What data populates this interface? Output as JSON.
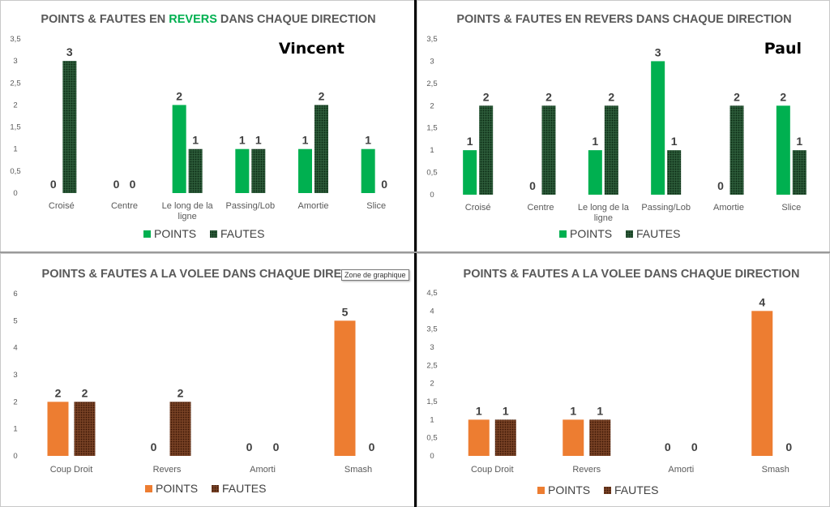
{
  "colors": {
    "green_points": "#00b050",
    "green_fautes": "#1f4e2c",
    "orange_points": "#ed7d31",
    "brown_fautes": "#6b3418",
    "revers_highlight": "#00b050"
  },
  "tooltip": "Zone de graphique",
  "chart_data": [
    {
      "type": "bar",
      "title_parts": [
        "POINTS & FAUTES EN ",
        "REVERS",
        " DANS CHAQUE DIRECTION"
      ],
      "title": "POINTS & FAUTES EN REVERS DANS CHAQUE DIRECTION",
      "player": "Vincent",
      "categories": [
        [
          "Croisé"
        ],
        [
          "Centre"
        ],
        [
          "Le long de la",
          "ligne"
        ],
        [
          "Passing/Lob"
        ],
        [
          "Amortie"
        ],
        [
          "Slice"
        ]
      ],
      "series": [
        {
          "name": "POINTS",
          "values": [
            0,
            0,
            2,
            1,
            1,
            1
          ],
          "color": "#00b050"
        },
        {
          "name": "FAUTES",
          "values": [
            3,
            0,
            1,
            1,
            2,
            0
          ],
          "color": "#1f4e2c",
          "pattern": true
        }
      ],
      "ylim": [
        0,
        3.5
      ],
      "yticks": [
        "0",
        "0,5",
        "1",
        "1,5",
        "2",
        "2,5",
        "3",
        "3,5"
      ],
      "legend": "bottom"
    },
    {
      "type": "bar",
      "title_parts": [
        "POINTS & FAUTES EN REVERS DANS CHAQUE DIRECTION"
      ],
      "title": "POINTS & FAUTES EN REVERS DANS CHAQUE DIRECTION",
      "player": "Paul",
      "categories": [
        [
          "Croisé"
        ],
        [
          "Centre"
        ],
        [
          "Le long de la",
          "ligne"
        ],
        [
          "Passing/Lob"
        ],
        [
          "Amortie"
        ],
        [
          "Slice"
        ]
      ],
      "series": [
        {
          "name": "POINTS",
          "values": [
            1,
            0,
            1,
            3,
            0,
            2
          ],
          "color": "#00b050"
        },
        {
          "name": "FAUTES",
          "values": [
            2,
            2,
            2,
            1,
            2,
            1
          ],
          "color": "#1f4e2c",
          "pattern": true
        }
      ],
      "ylim": [
        0,
        3.5
      ],
      "yticks": [
        "0",
        "0,5",
        "1",
        "1,5",
        "2",
        "2,5",
        "3",
        "3,5"
      ],
      "legend": "bottom"
    },
    {
      "type": "bar",
      "title_parts": [
        "POINTS & FAUTES A LA VOLEE DANS CHAQUE DIRECTION"
      ],
      "title": "POINTS & FAUTES A LA VOLEE DANS CHAQUE DIRECTION",
      "player": "",
      "categories": [
        [
          "Coup Droit"
        ],
        [
          "Revers"
        ],
        [
          "Amorti"
        ],
        [
          "Smash"
        ]
      ],
      "series": [
        {
          "name": "POINTS",
          "values": [
            2,
            0,
            0,
            5
          ],
          "color": "#ed7d31"
        },
        {
          "name": "FAUTES",
          "values": [
            2,
            2,
            0,
            0
          ],
          "color": "#6b3418",
          "pattern": true
        }
      ],
      "ylim": [
        0,
        6
      ],
      "yticks": [
        "0",
        "1",
        "2",
        "3",
        "4",
        "5",
        "6"
      ],
      "legend": "bottom"
    },
    {
      "type": "bar",
      "title_parts": [
        "POINTS & FAUTES A LA VOLEE DANS CHAQUE DIRECTION"
      ],
      "title": "POINTS & FAUTES A LA VOLEE DANS CHAQUE DIRECTION",
      "player": "",
      "categories": [
        [
          "Coup Droit"
        ],
        [
          "Revers"
        ],
        [
          "Amorti"
        ],
        [
          "Smash"
        ]
      ],
      "series": [
        {
          "name": "POINTS",
          "values": [
            1,
            1,
            0,
            4
          ],
          "color": "#ed7d31"
        },
        {
          "name": "FAUTES",
          "values": [
            1,
            1,
            0,
            0
          ],
          "color": "#6b3418",
          "pattern": true
        }
      ],
      "ylim": [
        0,
        4.5
      ],
      "yticks": [
        "0",
        "0,5",
        "1",
        "1,5",
        "2",
        "2,5",
        "3",
        "3,5",
        "4",
        "4,5"
      ],
      "legend": "bottom"
    }
  ]
}
